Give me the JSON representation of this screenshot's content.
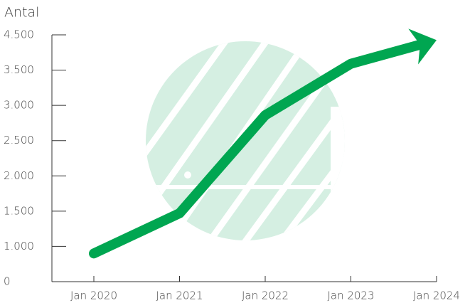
{
  "chart_data": {
    "type": "line",
    "y_label": "Antal",
    "categories": [
      "Jan 2020",
      "Jan 2021",
      "Jan 2022",
      "Jan 2023",
      "Jan 2024"
    ],
    "values": [
      800,
      1470,
      2860,
      3680,
      4350
    ],
    "color": "#00a651",
    "ylim": [
      0,
      4500
    ],
    "yticks": [
      0,
      {
        "value": 1000,
        "label": "1.000"
      },
      {
        "value": 1500,
        "label": "1.500"
      },
      {
        "value": 2000,
        "label": "2.000"
      },
      {
        "value": 2500,
        "label": "2.500"
      },
      {
        "value": 3000,
        "label": "3.000"
      },
      {
        "value": 3500,
        "label": "3.500"
      },
      {
        "value": 4500,
        "label": "4.500"
      }
    ]
  }
}
